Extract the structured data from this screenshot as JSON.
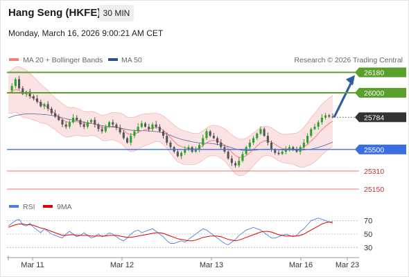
{
  "header": {
    "title": "Hang Seng (HKFE)",
    "timeframe": "30 MIN",
    "datetime": "Monday, March 16, 2026 9:00:21 AM CET"
  },
  "legend": {
    "ma20_label": "MA 20 + Bollinger Bands",
    "ma50_label": "MA 50",
    "copyright": "Research © 2026 Trading Central",
    "rsi_label": "RSI",
    "rsi_ma_label": "9MA"
  },
  "colors": {
    "ma20": "#f08080",
    "ma50": "#2f4f8f",
    "bands_fill": "#fbd9d9",
    "resistance": "#5aa02c",
    "support_blue": "#3b6fe0",
    "support_red": "#e06060",
    "current": "#333333",
    "arrow": "#2d5fa0",
    "rsi": "#4f7fd8",
    "rsi_ma": "#e00000",
    "candle_up": "#2ea02c",
    "candle_down": "#555555"
  },
  "chart_data": [
    {
      "type": "candlestick",
      "x_labels": [
        "Mar 11",
        "Mar 12",
        "Mar 13",
        "Mar 16",
        "Mar 23"
      ],
      "ylim": [
        25120,
        26220
      ],
      "levels": [
        {
          "value": 26180,
          "label": "26180",
          "kind": "resistance"
        },
        {
          "value": 26000,
          "label": "26000",
          "kind": "resistance"
        },
        {
          "value": 25784,
          "label": "25784",
          "kind": "current"
        },
        {
          "value": 25500,
          "label": "25500",
          "kind": "support_blue"
        },
        {
          "value": 25310,
          "label": "25310",
          "kind": "support_red"
        },
        {
          "value": 25150,
          "label": "25150",
          "kind": "support_red"
        }
      ],
      "close_path": [
        26020,
        26060,
        26120,
        26040,
        25990,
        26010,
        25970,
        25950,
        25920,
        25880,
        25900,
        25860,
        25820,
        25790,
        25760,
        25720,
        25700,
        25740,
        25780,
        25760,
        25720,
        25700,
        25740,
        25760,
        25720,
        25680,
        25660,
        25700,
        25740,
        25720,
        25690,
        25650,
        25600,
        25560,
        25620,
        25660,
        25700,
        25730,
        25700,
        25680,
        25720,
        25700,
        25660,
        25620,
        25560,
        25520,
        25480,
        25440,
        25470,
        25500,
        25520,
        25480,
        25500,
        25540,
        25600,
        25660,
        25620,
        25600,
        25560,
        25520,
        25480,
        25420,
        25380,
        25360,
        25400,
        25460,
        25520,
        25560,
        25600,
        25640,
        25680,
        25620,
        25560,
        25500,
        25470,
        25460,
        25480,
        25500,
        25520,
        25500,
        25480,
        25520,
        25560,
        25620,
        25680,
        25700,
        25740,
        25780,
        25800,
        25790,
        25784
      ],
      "projection": {
        "from": 25784,
        "to": 26180
      },
      "ma20_path": [
        26000,
        26010,
        26030,
        26020,
        26000,
        25990,
        25970,
        25950,
        25930,
        25905,
        25890,
        25870,
        25840,
        25815,
        25790,
        25765,
        25745,
        25740,
        25745,
        25745,
        25735,
        25725,
        25725,
        25730,
        25725,
        25710,
        25690,
        25690,
        25700,
        25705,
        25700,
        25690,
        25670,
        25640,
        25630,
        25635,
        25650,
        25665,
        25675,
        25680,
        25690,
        25695,
        25690,
        25670,
        25640,
        25605,
        25570,
        25540,
        25525,
        25515,
        25510,
        25505,
        25505,
        25515,
        25535,
        25560,
        25575,
        25580,
        25575,
        25560,
        25540,
        25510,
        25475,
        25445,
        25430,
        25430,
        25445,
        25470,
        25500,
        25530,
        25560,
        25575,
        25575,
        25565,
        25545,
        25525,
        25510,
        25505,
        25505,
        25505,
        25500,
        25505,
        25520,
        25545,
        25575,
        25605,
        25640,
        25675,
        25705,
        25730,
        25750
      ],
      "ma50_path": [
        25780,
        25790,
        25800,
        25805,
        25810,
        25815,
        25815,
        25815,
        25812,
        25810,
        25808,
        25805,
        25800,
        25795,
        25790,
        25780,
        25770,
        25765,
        25760,
        25755,
        25748,
        25740,
        25735,
        25730,
        25725,
        25718,
        25710,
        25705,
        25700,
        25698,
        25695,
        25690,
        25683,
        25675,
        25670,
        25668,
        25667,
        25666,
        25665,
        25663,
        25660,
        25657,
        25652,
        25645,
        25635,
        25625,
        25612,
        25600,
        25590,
        25582,
        25575,
        25568,
        25562,
        25558,
        25556,
        25555,
        25553,
        25550,
        25545,
        25540,
        25533,
        25525,
        25515,
        25505,
        25497,
        25492,
        25490,
        25490,
        25492,
        25495,
        25500,
        25502,
        25503,
        25502,
        25500,
        25498,
        25496,
        25495,
        25495,
        25495,
        25494,
        25494,
        25495,
        25498,
        25503,
        25510,
        25518,
        25528,
        25540,
        25552,
        25565
      ],
      "band_width_path": [
        180,
        190,
        200,
        210,
        215,
        210,
        200,
        190,
        180,
        170,
        160,
        150,
        145,
        140,
        140,
        140,
        135,
        130,
        125,
        120,
        115,
        110,
        108,
        106,
        105,
        105,
        110,
        115,
        118,
        120,
        125,
        130,
        138,
        145,
        150,
        150,
        148,
        145,
        140,
        135,
        130,
        125,
        122,
        125,
        130,
        138,
        145,
        150,
        150,
        148,
        145,
        140,
        135,
        130,
        128,
        130,
        132,
        134,
        135,
        138,
        142,
        148,
        155,
        160,
        162,
        160,
        155,
        150,
        145,
        140,
        135,
        130,
        128,
        126,
        125,
        125,
        126,
        128,
        130,
        135,
        145,
        160,
        175,
        190,
        205,
        215,
        220,
        225,
        225,
        225,
        225
      ]
    },
    {
      "type": "line",
      "ylim": [
        20,
        80
      ],
      "y_ticks": [
        70,
        50,
        30
      ],
      "series": [
        {
          "name": "RSI",
          "values": [
            62,
            66,
            70,
            72,
            64,
            62,
            66,
            60,
            56,
            52,
            58,
            54,
            50,
            48,
            46,
            44,
            50,
            54,
            50,
            46,
            48,
            52,
            48,
            44,
            46,
            50,
            46,
            48,
            52,
            50,
            46,
            42,
            40,
            44,
            50,
            54,
            56,
            52,
            54,
            56,
            58,
            54,
            50,
            46,
            40,
            36,
            36,
            38,
            40,
            38,
            42,
            46,
            50,
            54,
            58,
            56,
            52,
            48,
            44,
            40,
            36,
            34,
            38,
            42,
            48,
            52,
            56,
            58,
            60,
            58,
            56,
            52,
            48,
            44,
            44,
            46,
            48,
            50,
            48,
            46,
            48,
            54,
            58,
            64,
            70,
            72,
            74,
            72,
            70,
            68,
            66
          ]
        },
        {
          "name": "9MA",
          "values": [
            60,
            62,
            64,
            65,
            65,
            64,
            64,
            63,
            61,
            59,
            58,
            56,
            54,
            52,
            50,
            48,
            48,
            49,
            49,
            48,
            48,
            48,
            48,
            47,
            47,
            47,
            47,
            47,
            48,
            48,
            48,
            47,
            46,
            45,
            45,
            46,
            47,
            48,
            49,
            50,
            51,
            52,
            52,
            51,
            49,
            47,
            45,
            43,
            42,
            41,
            40,
            40,
            41,
            43,
            45,
            46,
            47,
            47,
            47,
            46,
            44,
            42,
            41,
            40,
            41,
            43,
            45,
            47,
            49,
            51,
            53,
            54,
            54,
            53,
            51,
            49,
            48,
            47,
            47,
            47,
            47,
            48,
            50,
            53,
            56,
            59,
            62,
            65,
            67,
            68,
            68
          ]
        }
      ]
    }
  ]
}
